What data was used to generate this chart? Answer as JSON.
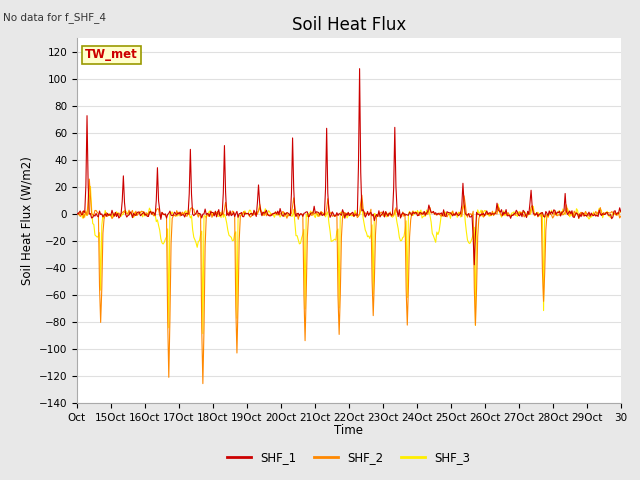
{
  "title": "Soil Heat Flux",
  "no_data_text": "No data for f_SHF_4",
  "ylabel": "Soil Heat Flux (W/m2)",
  "xlabel": "Time",
  "ylim": [
    -140,
    130
  ],
  "yticks": [
    -140,
    -120,
    -100,
    -80,
    -60,
    -40,
    -20,
    0,
    20,
    40,
    60,
    80,
    100,
    120
  ],
  "xtick_labels": [
    "Oct",
    "15Oct",
    "16Oct",
    "17Oct",
    "18Oct",
    "19Oct",
    "20Oct",
    "21Oct",
    "22Oct",
    "23Oct",
    "24Oct",
    "25Oct",
    "26Oct",
    "27Oct",
    "28Oct",
    "29Oct",
    "30"
  ],
  "colors": {
    "SHF_1": "#cc0000",
    "SHF_2": "#ff8800",
    "SHF_3": "#ffee00"
  },
  "fig_bg": "#e8e8e8",
  "plot_bg": "#ffffff",
  "grid_color": "#e0e0e0",
  "tw_met_box_face": "#ffffcc",
  "tw_met_box_edge": "#999900",
  "n_points": 480,
  "days": 16
}
